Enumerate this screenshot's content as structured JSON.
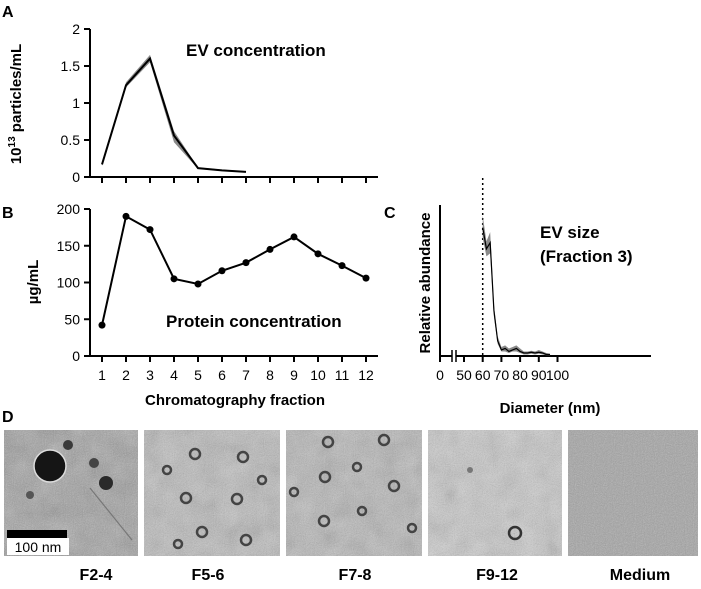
{
  "panels": {
    "A": "A",
    "B": "B",
    "C": "C",
    "D": "D"
  },
  "chart_data": [
    {
      "id": "A",
      "type": "line",
      "title": "EV concentration",
      "ylabel_base": "10",
      "ylabel_exp": "13",
      "ylabel_rest": " particles/mL",
      "ylim": [
        0,
        2
      ],
      "yticks": [
        0,
        0.5,
        1,
        1.5,
        2
      ],
      "ytick_labels": [
        "0",
        "0.5",
        "1",
        "1.5",
        "2"
      ],
      "xlim": [
        0.5,
        12.5
      ],
      "x": [
        1,
        2,
        3,
        4,
        5,
        6,
        7
      ],
      "y": [
        0.17,
        1.24,
        1.6,
        0.56,
        0.12,
        0.09,
        0.07
      ],
      "y_lower": [
        0.15,
        1.21,
        1.55,
        0.47,
        0.11,
        0.08,
        0.06
      ],
      "y_upper": [
        0.19,
        1.28,
        1.65,
        0.62,
        0.13,
        0.1,
        0.08
      ],
      "series_color": "#000000",
      "band_color": "#8a8a8a"
    },
    {
      "id": "B",
      "type": "line",
      "title": "Protein concentration",
      "ylabel": "µg/mL",
      "xlabel": "Chromatography fraction",
      "ylim": [
        0,
        200
      ],
      "yticks": [
        0,
        50,
        100,
        150,
        200
      ],
      "ytick_labels": [
        "0",
        "50",
        "100",
        "150",
        "200"
      ],
      "xlim": [
        0.5,
        12.5
      ],
      "categories": [
        "1",
        "2",
        "3",
        "4",
        "5",
        "6",
        "7",
        "8",
        "9",
        "10",
        "11",
        "12"
      ],
      "x": [
        1,
        2,
        3,
        4,
        5,
        6,
        7,
        8,
        9,
        10,
        11,
        12
      ],
      "y": [
        42,
        190,
        172,
        105,
        98,
        116,
        127,
        145,
        162,
        139,
        123,
        106
      ],
      "series_color": "#000000"
    },
    {
      "id": "C",
      "type": "area",
      "title_line1": "EV size",
      "title_line2": "(Fraction 3)",
      "ylabel": "Relative abundance",
      "xlabel": "Diameter (nm)",
      "xticks": [
        0,
        50,
        60,
        70,
        80,
        90,
        100
      ],
      "xtick_labels": [
        "0",
        "50",
        "60",
        "70",
        "80",
        "90",
        "100"
      ],
      "axis_break": true,
      "reference_line_x": 60,
      "x": [
        60,
        62,
        64,
        66,
        68,
        70,
        72,
        74,
        76,
        78,
        80,
        82,
        84,
        86,
        88,
        90,
        92,
        94,
        96
      ],
      "y": [
        0.85,
        0.71,
        0.75,
        0.3,
        0.1,
        0.04,
        0.05,
        0.03,
        0.04,
        0.05,
        0.03,
        0.02,
        0.02,
        0.025,
        0.02,
        0.025,
        0.02,
        0.01,
        0.01
      ],
      "y_lower": [
        0.78,
        0.66,
        0.68,
        0.26,
        0.08,
        0.03,
        0.03,
        0.02,
        0.03,
        0.03,
        0.02,
        0.01,
        0.01,
        0.015,
        0.01,
        0.015,
        0.01,
        0.005,
        0.005
      ],
      "y_upper": [
        0.93,
        0.76,
        0.82,
        0.34,
        0.13,
        0.06,
        0.07,
        0.05,
        0.06,
        0.07,
        0.05,
        0.03,
        0.03,
        0.035,
        0.03,
        0.04,
        0.03,
        0.02,
        0.015
      ],
      "series_color": "#000000",
      "band_color": "#8a8a8a"
    }
  ],
  "tem": {
    "panels": [
      {
        "label": "F2-4",
        "tone": "#9a9a9a"
      },
      {
        "label": "F5-6",
        "tone": "#b8b8b8"
      },
      {
        "label": "F7-8",
        "tone": "#b3b3b3"
      },
      {
        "label": "F9-12",
        "tone": "#c8c8c8"
      },
      {
        "label": "Medium",
        "tone": "#a3a3a3"
      }
    ],
    "scalebar_label": "100 nm"
  }
}
